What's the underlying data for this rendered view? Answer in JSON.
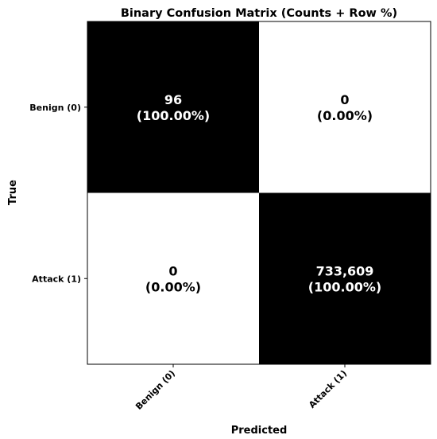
{
  "chart_data": {
    "type": "heatmap",
    "title": "Binary Confusion Matrix (Counts + Row %)",
    "xlabel": "Predicted",
    "ylabel": "True",
    "row_labels": [
      "Benign (0)",
      "Attack (1)"
    ],
    "col_labels": [
      "Benign (0)",
      "Attack (1)"
    ],
    "values": [
      [
        96,
        0
      ],
      [
        0,
        733609
      ]
    ],
    "row_percent": [
      [
        100.0,
        0.0
      ],
      [
        0.0,
        100.0
      ]
    ],
    "cell_text": [
      [
        {
          "count": "96",
          "percent": "(100.00%)"
        },
        {
          "count": "0",
          "percent": "(0.00%)"
        }
      ],
      [
        {
          "count": "0",
          "percent": "(0.00%)"
        },
        {
          "count": "733,609",
          "percent": "(100.00%)"
        }
      ]
    ],
    "colormap": "row-normalized: 100% = black, 0% = white",
    "colors": {
      "high": "#000000",
      "low": "#ffffff",
      "text_on_dark": "#ffffff",
      "text_on_light": "#000000"
    },
    "grid": false,
    "legend": "none"
  }
}
